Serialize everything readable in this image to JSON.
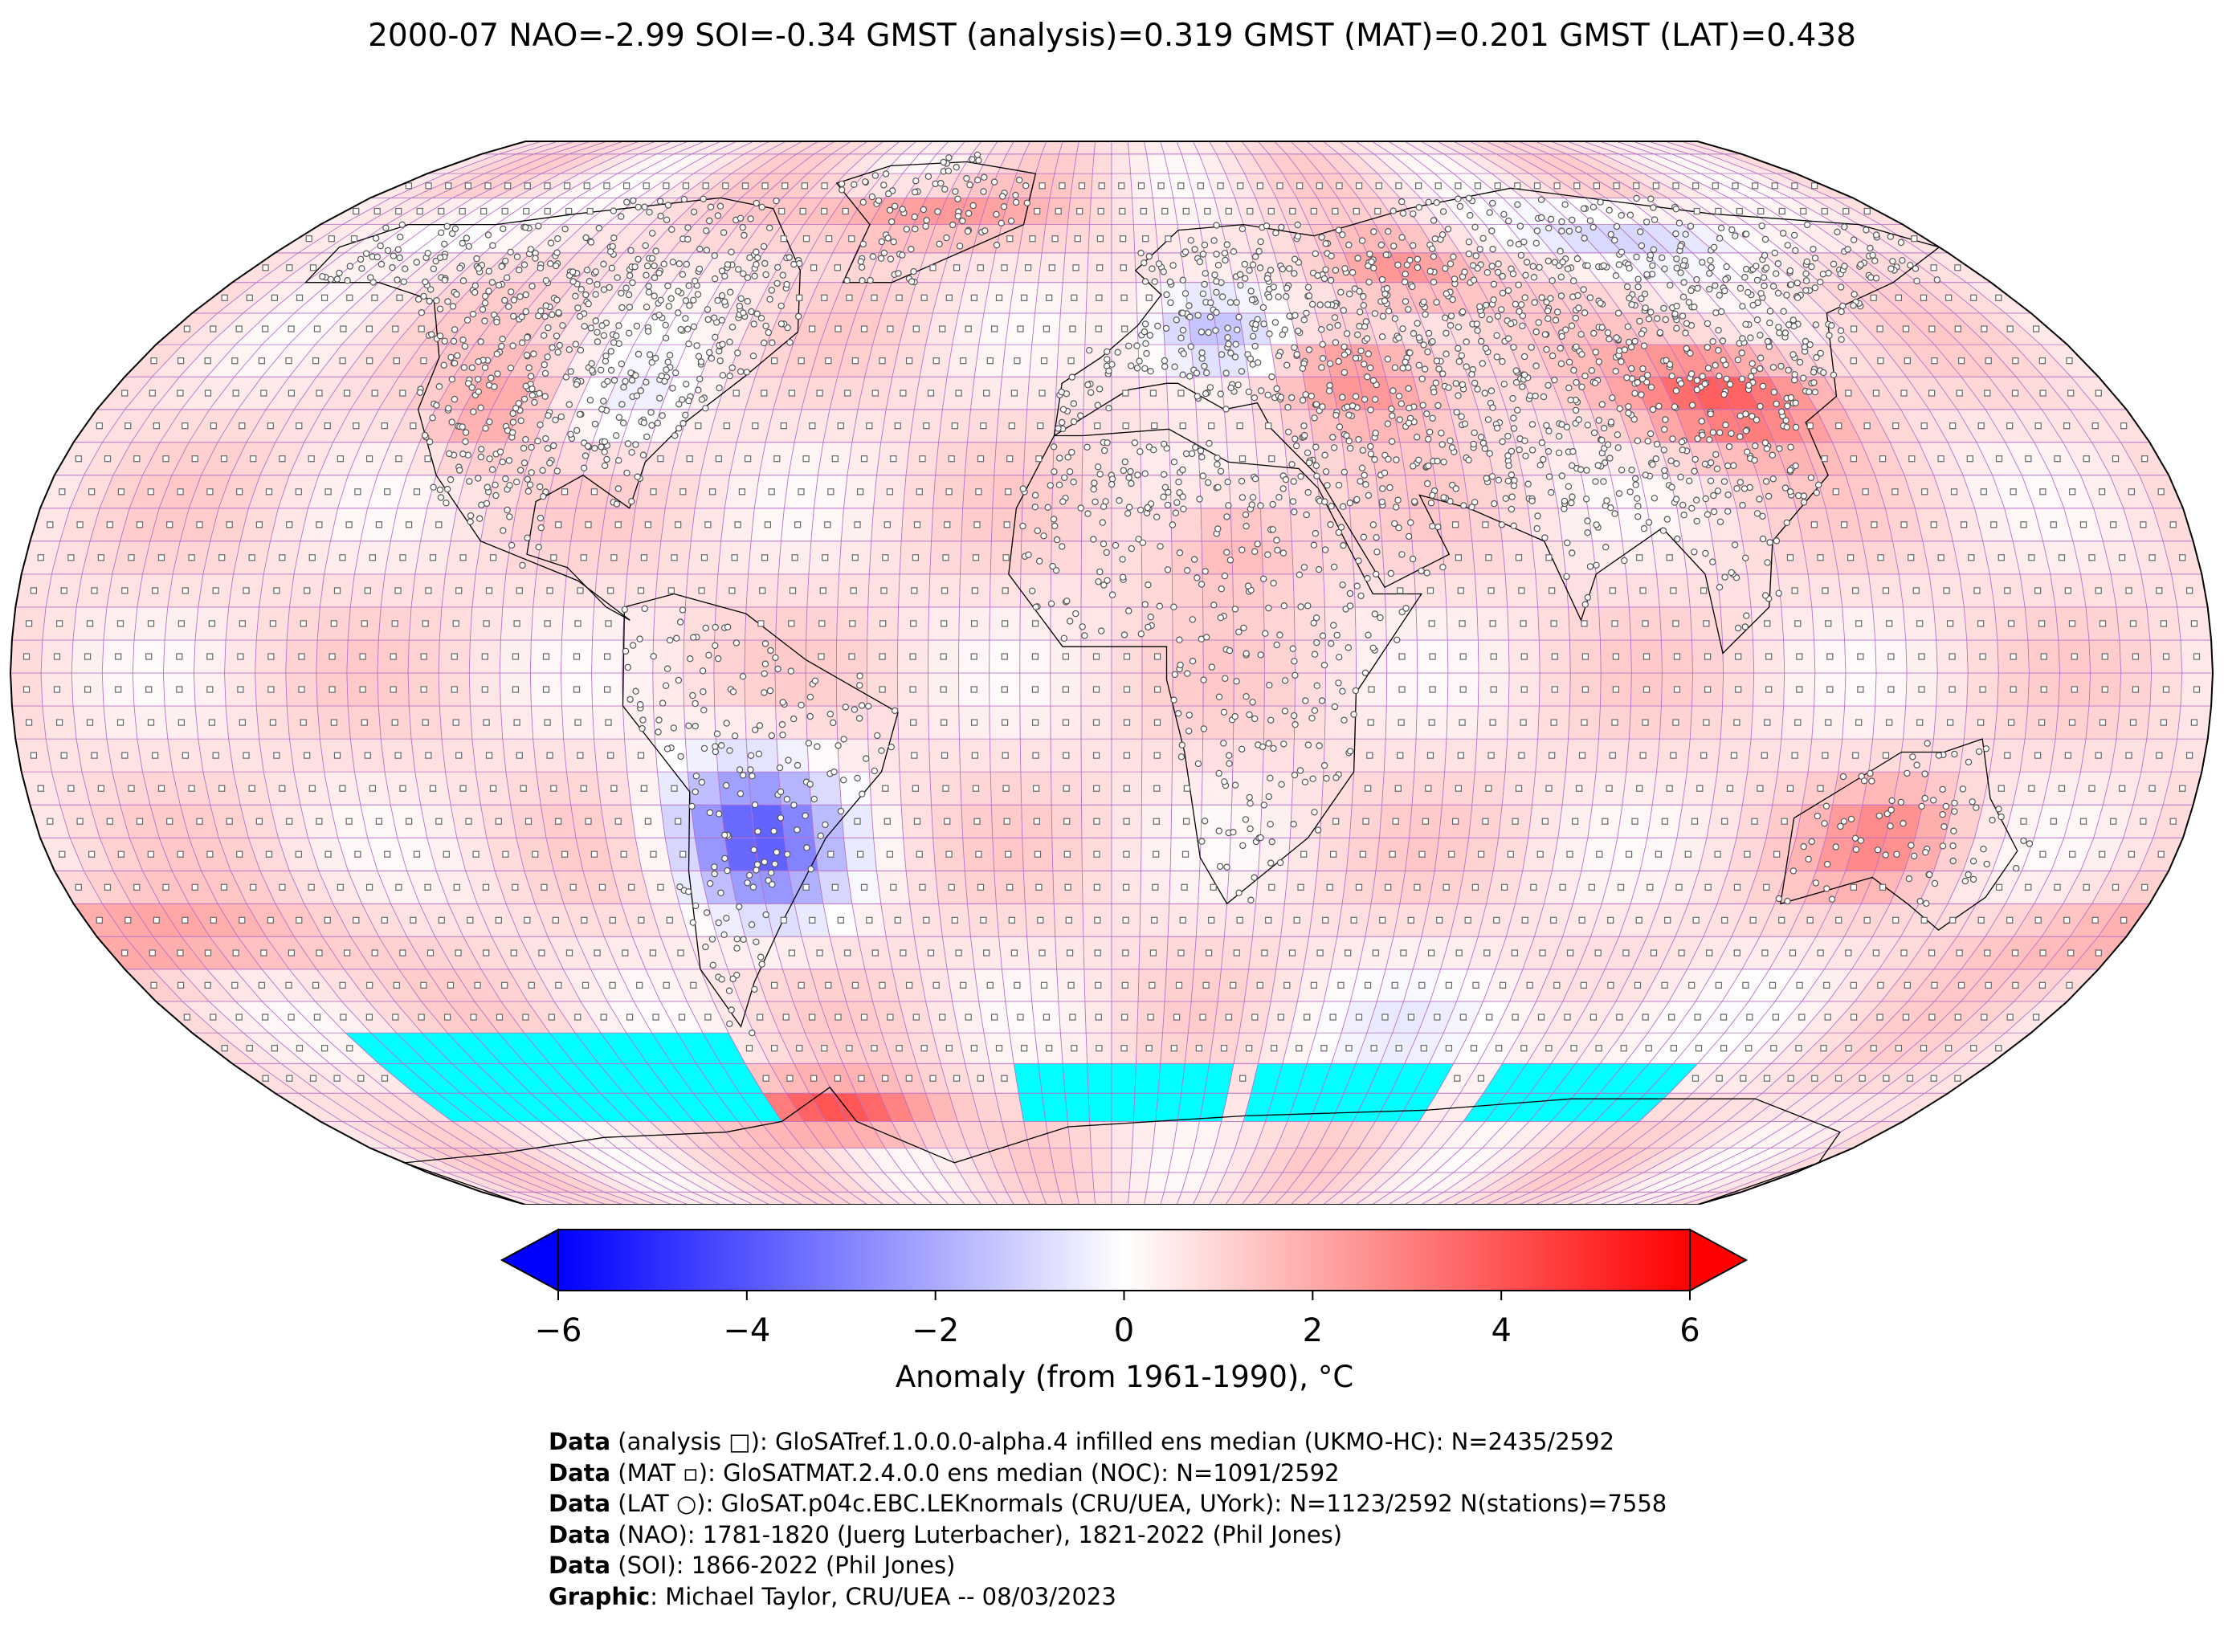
{
  "title": "2000-07 NAO=-2.99 SOI=-0.34 GMST (analysis)=0.319 GMST (MAT)=0.201 GMST (LAT)=0.438",
  "projection": "Robinson",
  "grid": {
    "resolution_deg": 5,
    "cell_border_color": "#b76fc9"
  },
  "colors": {
    "cold": "#0000ff",
    "neutral": "#ffffff",
    "warm": "#ff0000",
    "sea_ice_mask": "#00ffff",
    "outline": "#000000"
  },
  "colorbar": {
    "min": -6,
    "max": 6,
    "ticks": [
      -6,
      -4,
      -2,
      0,
      2,
      4,
      6
    ],
    "tick_labels": [
      "−6",
      "−4",
      "−2",
      "0",
      "2",
      "4",
      "6"
    ],
    "label": "Anomaly (from 1961-1990), °C",
    "extend": "both",
    "colormap": "bwr"
  },
  "legend_markers": {
    "analysis": "square",
    "MAT": "small-square",
    "LAT": "circle"
  },
  "credits": [
    {
      "bold": "Data",
      "text": " (analysis □): GloSATref.1.0.0.0-alpha.4 infilled ens median (UKMO-HC): N=2435/2592"
    },
    {
      "bold": "Data",
      "text": " (MAT ▫): GloSATMAT.2.4.0.0 ens median (NOC): N=1091/2592"
    },
    {
      "bold": "Data",
      "text": " (LAT ○): GloSAT.p04c.EBC.LEKnormals (CRU/UEA, UYork): N=1123/2592 N(stations)=7558"
    },
    {
      "bold": "Data",
      "text": " (NAO): 1781-1820 (Juerg Luterbacher), 1821-2022 (Phil Jones)"
    },
    {
      "bold": "Data",
      "text": " (SOI): 1866-2022 (Phil Jones)"
    },
    {
      "bold": "Graphic",
      "text": ": Michael Taylor, CRU/UEA -- 08/03/2023"
    }
  ]
}
